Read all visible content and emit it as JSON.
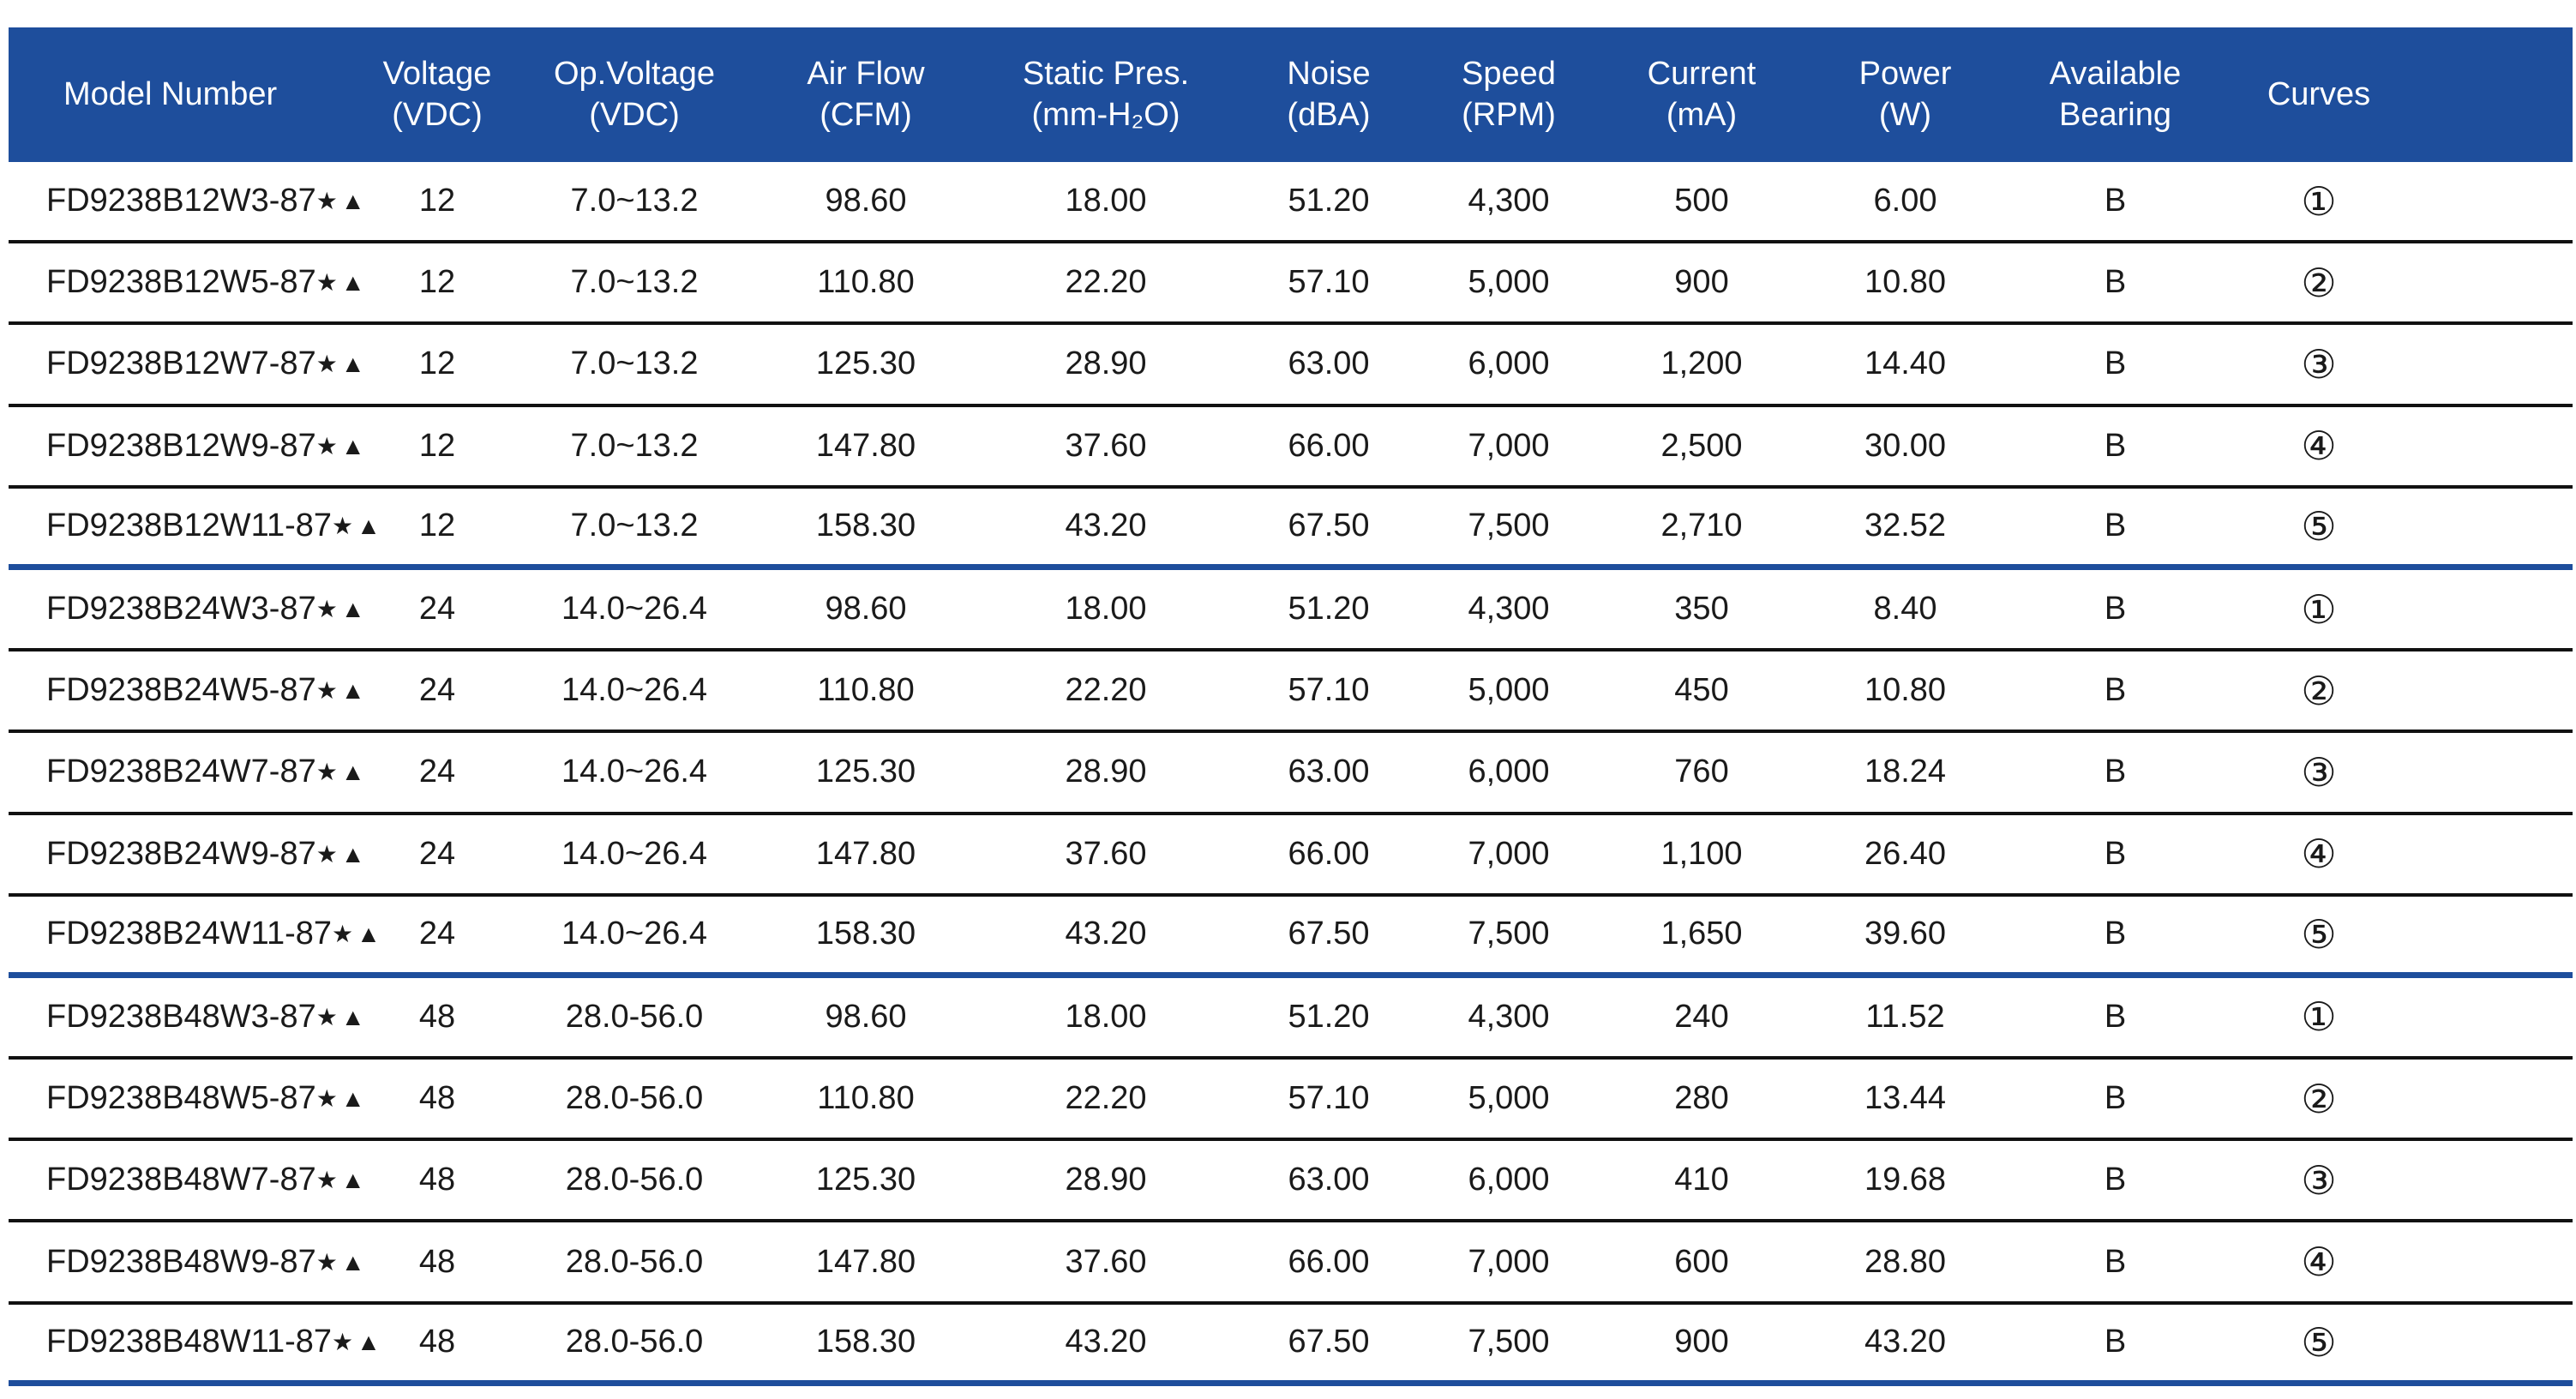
{
  "table": {
    "headers": [
      "Model Number",
      "Voltage\n(VDC)",
      "Op.Voltage\n(VDC)",
      "Air Flow\n(CFM)",
      "Static Pres.\n(mm-H₂O)",
      "Noise\n(dBA)",
      "Speed\n(RPM)",
      "Current\n(mA)",
      "Power\n(W)",
      "Available\nBearing",
      "Curves"
    ],
    "rows": [
      {
        "model": "FD9238B12W3-87",
        "marks": "★▲",
        "voltage": "12",
        "op_voltage": "7.0~13.2",
        "air_flow": "98.60",
        "static_pres": "18.00",
        "noise": "51.20",
        "speed": "4,300",
        "current": "500",
        "power": "6.00",
        "bearing": "B",
        "curve": "①"
      },
      {
        "model": "FD9238B12W5-87",
        "marks": "★▲",
        "voltage": "12",
        "op_voltage": "7.0~13.2",
        "air_flow": "110.80",
        "static_pres": "22.20",
        "noise": "57.10",
        "speed": "5,000",
        "current": "900",
        "power": "10.80",
        "bearing": "B",
        "curve": "②"
      },
      {
        "model": "FD9238B12W7-87",
        "marks": "★▲",
        "voltage": "12",
        "op_voltage": "7.0~13.2",
        "air_flow": "125.30",
        "static_pres": "28.90",
        "noise": "63.00",
        "speed": "6,000",
        "current": "1,200",
        "power": "14.40",
        "bearing": "B",
        "curve": "③"
      },
      {
        "model": "FD9238B12W9-87",
        "marks": "★▲",
        "voltage": "12",
        "op_voltage": "7.0~13.2",
        "air_flow": "147.80",
        "static_pres": "37.60",
        "noise": "66.00",
        "speed": "7,000",
        "current": "2,500",
        "power": "30.00",
        "bearing": "B",
        "curve": "④"
      },
      {
        "model": "FD9238B12W11-87",
        "marks": "★▲",
        "voltage": "12",
        "op_voltage": "7.0~13.2",
        "air_flow": "158.30",
        "static_pres": "43.20",
        "noise": "67.50",
        "speed": "7,500",
        "current": "2,710",
        "power": "32.52",
        "bearing": "B",
        "curve": "⑤"
      },
      {
        "model": "FD9238B24W3-87",
        "marks": "★▲",
        "voltage": "24",
        "op_voltage": "14.0~26.4",
        "air_flow": "98.60",
        "static_pres": "18.00",
        "noise": "51.20",
        "speed": "4,300",
        "current": "350",
        "power": "8.40",
        "bearing": "B",
        "curve": "①"
      },
      {
        "model": "FD9238B24W5-87",
        "marks": "★▲",
        "voltage": "24",
        "op_voltage": "14.0~26.4",
        "air_flow": "110.80",
        "static_pres": "22.20",
        "noise": "57.10",
        "speed": "5,000",
        "current": "450",
        "power": "10.80",
        "bearing": "B",
        "curve": "②"
      },
      {
        "model": "FD9238B24W7-87",
        "marks": "★▲",
        "voltage": "24",
        "op_voltage": "14.0~26.4",
        "air_flow": "125.30",
        "static_pres": "28.90",
        "noise": "63.00",
        "speed": "6,000",
        "current": "760",
        "power": "18.24",
        "bearing": "B",
        "curve": "③"
      },
      {
        "model": "FD9238B24W9-87",
        "marks": "★▲",
        "voltage": "24",
        "op_voltage": "14.0~26.4",
        "air_flow": "147.80",
        "static_pres": "37.60",
        "noise": "66.00",
        "speed": "7,000",
        "current": "1,100",
        "power": "26.40",
        "bearing": "B",
        "curve": "④"
      },
      {
        "model": "FD9238B24W11-87",
        "marks": "★▲",
        "voltage": "24",
        "op_voltage": "14.0~26.4",
        "air_flow": "158.30",
        "static_pres": "43.20",
        "noise": "67.50",
        "speed": "7,500",
        "current": "1,650",
        "power": "39.60",
        "bearing": "B",
        "curve": "⑤"
      },
      {
        "model": "FD9238B48W3-87",
        "marks": "★▲",
        "voltage": "48",
        "op_voltage": "28.0-56.0",
        "air_flow": "98.60",
        "static_pres": "18.00",
        "noise": "51.20",
        "speed": "4,300",
        "current": "240",
        "power": "11.52",
        "bearing": "B",
        "curve": "①"
      },
      {
        "model": "FD9238B48W5-87",
        "marks": "★▲",
        "voltage": "48",
        "op_voltage": "28.0-56.0",
        "air_flow": "110.80",
        "static_pres": "22.20",
        "noise": "57.10",
        "speed": "5,000",
        "current": "280",
        "power": "13.44",
        "bearing": "B",
        "curve": "②"
      },
      {
        "model": "FD9238B48W7-87",
        "marks": "★▲",
        "voltage": "48",
        "op_voltage": "28.0-56.0",
        "air_flow": "125.30",
        "static_pres": "28.90",
        "noise": "63.00",
        "speed": "6,000",
        "current": "410",
        "power": "19.68",
        "bearing": "B",
        "curve": "③"
      },
      {
        "model": "FD9238B48W9-87",
        "marks": "★▲",
        "voltage": "48",
        "op_voltage": "28.0-56.0",
        "air_flow": "147.80",
        "static_pres": "37.60",
        "noise": "66.00",
        "speed": "7,000",
        "current": "600",
        "power": "28.80",
        "bearing": "B",
        "curve": "④"
      },
      {
        "model": "FD9238B48W11-87",
        "marks": "★▲",
        "voltage": "48",
        "op_voltage": "28.0-56.0",
        "air_flow": "158.30",
        "static_pres": "43.20",
        "noise": "67.50",
        "speed": "7,500",
        "current": "900",
        "power": "43.20",
        "bearing": "B",
        "curve": "⑤"
      }
    ]
  },
  "colors": {
    "header_background": "#1e4e9c",
    "header_text": "#ffffff",
    "group_divider": "#1e4e9c",
    "row_divider": "#111111"
  }
}
